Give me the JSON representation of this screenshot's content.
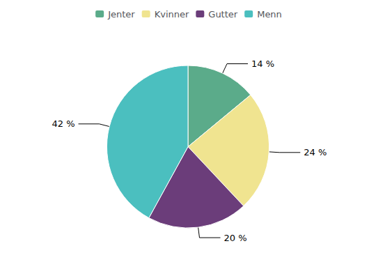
{
  "chart_data": {
    "type": "pie",
    "categories": [
      "Jenter",
      "Kvinner",
      "Gutter",
      "Menn"
    ],
    "values": [
      14,
      24,
      20,
      42
    ],
    "value_labels": [
      "14 %",
      "24 %",
      "20 %",
      "42 %"
    ],
    "colors": [
      "#5bab8a",
      "#f0e490",
      "#6b3d7a",
      "#4bbfbf"
    ],
    "data_labels": true,
    "legend": "top"
  }
}
